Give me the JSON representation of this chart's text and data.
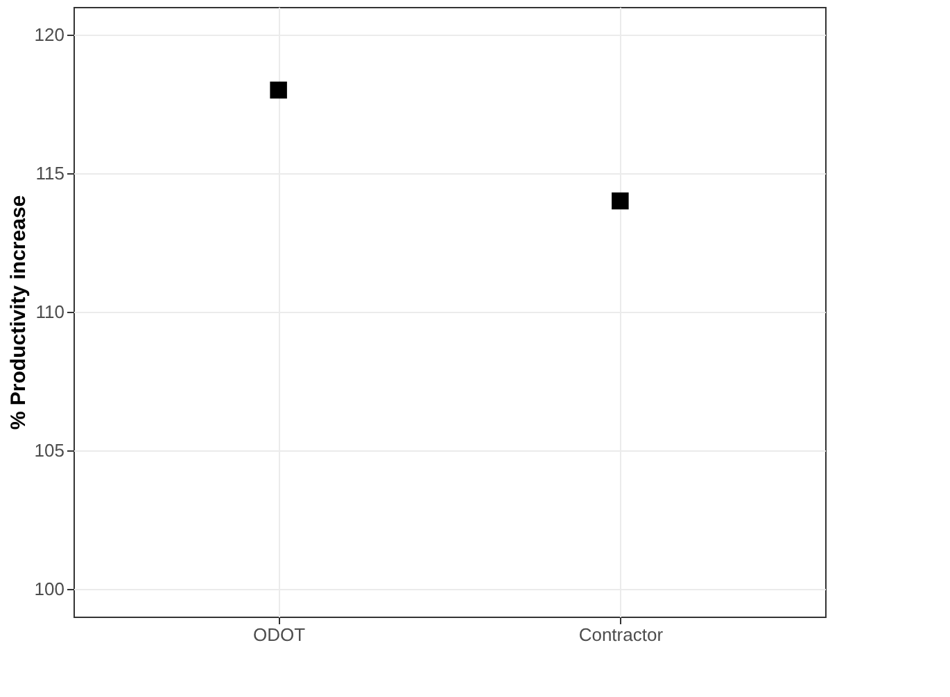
{
  "chart_data": {
    "type": "scatter",
    "ylabel": "% Productivity increase",
    "categories": [
      "ODOT",
      "Contractor"
    ],
    "series": [
      {
        "color": "#000000",
        "values": [
          118,
          114
        ]
      }
    ],
    "ylim": [
      99,
      121
    ],
    "yticks": [
      100,
      105,
      110,
      115,
      120
    ],
    "grid": true,
    "marker": "square"
  }
}
